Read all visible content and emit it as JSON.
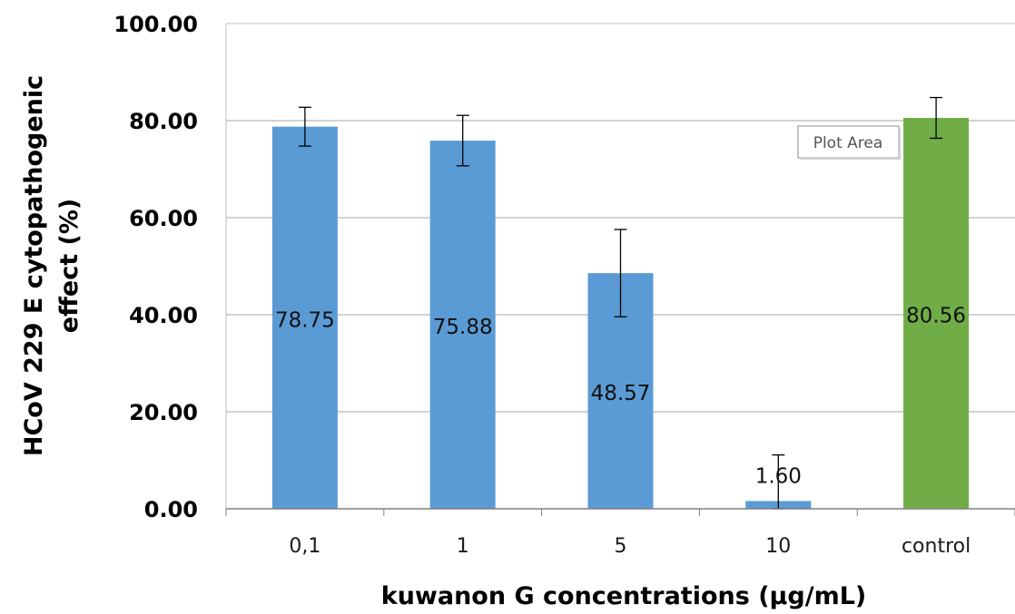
{
  "chart_data": {
    "type": "bar",
    "categories": [
      "0,1",
      "1",
      "5",
      "10",
      "control"
    ],
    "values": [
      78.75,
      75.88,
      48.57,
      1.6,
      80.56
    ],
    "value_labels": [
      "78.75",
      "75.88",
      "48.57",
      "1.60",
      "80.56"
    ],
    "error_bars": [
      4.0,
      5.2,
      9.0,
      9.5,
      4.2
    ],
    "colors": [
      "#5b9bd5",
      "#5b9bd5",
      "#5b9bd5",
      "#5b9bd5",
      "#70ad47"
    ],
    "y_ticks": [
      "0.00",
      "20.00",
      "40.00",
      "60.00",
      "80.00",
      "100.00"
    ],
    "ylim": [
      0,
      100
    ],
    "xlabel": "kuwanon G concentrations (µg/mL)",
    "ylabel_line1": "HCoV 229 E cytopathogenic",
    "ylabel_line2": "effect (%)",
    "grid": true,
    "legend": false
  },
  "tooltip": "Plot Area"
}
